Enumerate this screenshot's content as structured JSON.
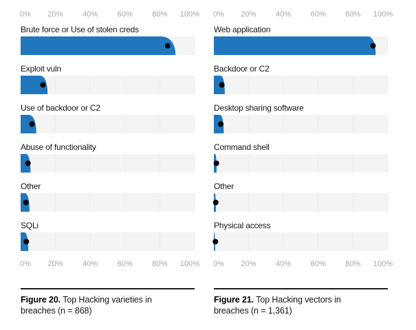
{
  "colors": {
    "bar_blue": "#2077bd",
    "track_gray": "#f4f4f4",
    "gridline_gray": "#d6d6d6",
    "dot_black": "#000000",
    "axis_text_gray": "#a5a5a5",
    "label_text": "#141414",
    "rule_dark": "#1b1b1b"
  },
  "chart_data": [
    {
      "type": "bar",
      "orientation": "horizontal",
      "caption_label": "Figure 20.",
      "caption_text": "Top Hacking varieties in breaches (n = 868)",
      "n": "868",
      "x_tick_labels": [
        "0%",
        "20%",
        "40%",
        "60%",
        "80%",
        "100%"
      ],
      "xlim": [
        0,
        100
      ],
      "grid": "dotted-vertical",
      "categories": [
        "Brute force or Use of stolen creds",
        "Exploit vuln",
        "Use of backdoor or C2",
        "Abuse of functionality",
        "Other",
        "SQLi"
      ],
      "values": [
        84.5,
        12.8,
        6.5,
        4.2,
        3.1,
        3.3
      ],
      "band_low": [
        80.5,
        11.0,
        4.5,
        3.1,
        2.5,
        2.1
      ],
      "band_high": [
        89.0,
        15.5,
        9.0,
        5.7,
        5.1,
        4.4
      ]
    },
    {
      "type": "bar",
      "orientation": "horizontal",
      "caption_label": "Figure 21.",
      "caption_text": "Top Hacking vectors in breaches (n = 1,361)",
      "n": "1,361",
      "x_tick_labels": [
        "0%",
        "20%",
        "40%",
        "60%",
        "80%",
        "100%"
      ],
      "xlim": [
        0,
        100
      ],
      "grid": "dotted-vertical",
      "categories": [
        "Web application",
        "Backdoor or C2",
        "Desktop sharing software",
        "Command shell",
        "Other",
        "Physical access"
      ],
      "values": [
        91.5,
        4.6,
        4.0,
        1.5,
        1.1,
        0.9
      ],
      "band_low": [
        88.5,
        3.8,
        3.4,
        0.7,
        0.5,
        0.2
      ],
      "band_high": [
        93.0,
        6.3,
        5.7,
        1.6,
        1.2,
        0.7
      ]
    }
  ]
}
